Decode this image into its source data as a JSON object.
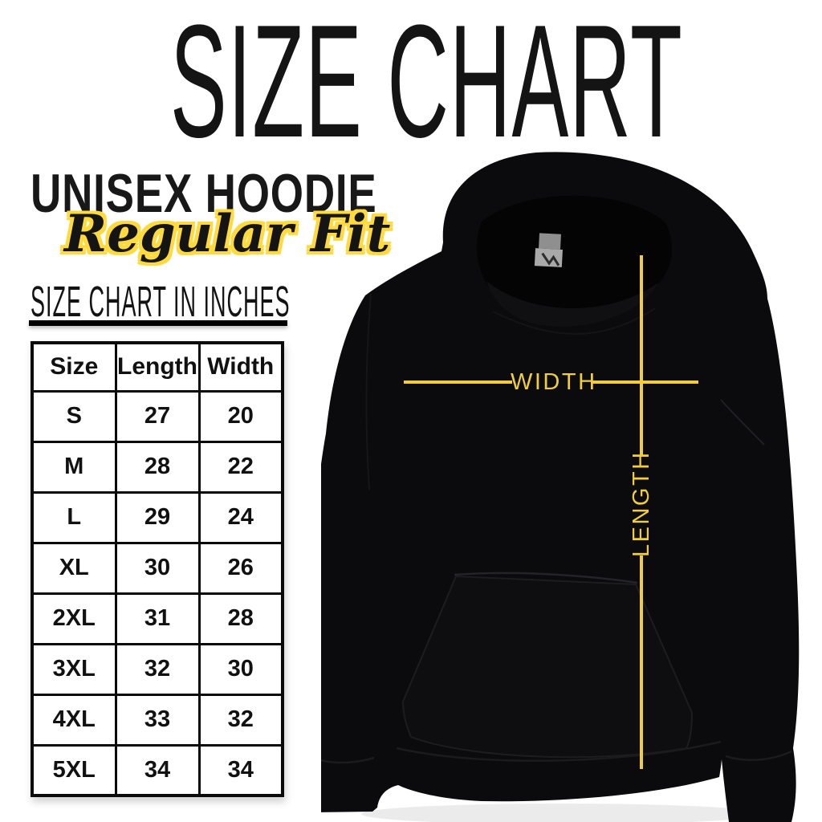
{
  "poster": {
    "title": "SIZE CHART",
    "product_name": "UNISEX HOODIE",
    "fit": "Regular Fit",
    "table_heading": "SIZE CHART IN INCHES"
  },
  "size_table": {
    "headers": [
      "Size",
      "Length",
      "Width"
    ],
    "rows": [
      {
        "size": "S",
        "length": "27",
        "width": "20"
      },
      {
        "size": "M",
        "length": "28",
        "width": "22"
      },
      {
        "size": "L",
        "length": "29",
        "width": "24"
      },
      {
        "size": "XL",
        "length": "30",
        "width": "26"
      },
      {
        "size": "2XL",
        "length": "31",
        "width": "28"
      },
      {
        "size": "3XL",
        "length": "32",
        "width": "30"
      },
      {
        "size": "4XL",
        "length": "33",
        "width": "32"
      },
      {
        "size": "5XL",
        "length": "34",
        "width": "34"
      }
    ]
  },
  "measurements": {
    "width_label": "WIDTH",
    "length_label": "LENGTH"
  },
  "chart_data": {
    "type": "table",
    "title": "SIZE CHART IN INCHES",
    "columns": [
      "Size",
      "Length",
      "Width"
    ],
    "rows": [
      [
        "S",
        27,
        20
      ],
      [
        "M",
        28,
        22
      ],
      [
        "L",
        29,
        24
      ],
      [
        "XL",
        30,
        26
      ],
      [
        "2XL",
        31,
        28
      ],
      [
        "3XL",
        32,
        30
      ],
      [
        "4XL",
        33,
        32
      ],
      [
        "5XL",
        34,
        34
      ]
    ],
    "units": "inches"
  },
  "colors": {
    "accent_yellow": "#F1CD3B",
    "outline_yellow": "#FFDA3E",
    "hoodie_black": "#0b0b0d",
    "text_black": "#111111",
    "background": "#ffffff"
  }
}
